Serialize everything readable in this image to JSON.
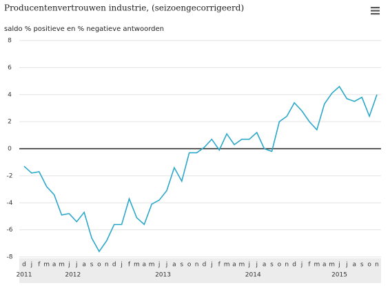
{
  "chart_data": {
    "type": "line",
    "title": "Producentenvertrouwen industrie, (seizoengecorrigeerd)",
    "subtitle": "saldo % positieve en % negatieve antwoorden",
    "categories": [
      "d",
      "j",
      "f",
      "m",
      "a",
      "m",
      "j",
      "j",
      "a",
      "s",
      "o",
      "n",
      "d",
      "j",
      "f",
      "m",
      "a",
      "m",
      "j",
      "j",
      "a",
      "s",
      "o",
      "n",
      "d",
      "j",
      "f",
      "m",
      "a",
      "m",
      "j",
      "j",
      "a",
      "s",
      "o",
      "n",
      "d",
      "j",
      "f",
      "m",
      "a",
      "m",
      "j",
      "j",
      "a",
      "s",
      "o",
      "n"
    ],
    "years": [
      "2011",
      "2012",
      "2013",
      "2014",
      "2015"
    ],
    "series": [
      {
        "color": "#2aa7c9",
        "values": [
          -1.3,
          -1.8,
          -1.7,
          -2.8,
          -3.4,
          -4.9,
          -4.8,
          -5.4,
          -4.7,
          -6.6,
          -7.6,
          -6.8,
          -5.6,
          -5.6,
          -3.7,
          -5.1,
          -5.6,
          -4.1,
          -3.8,
          -3.1,
          -1.4,
          -2.4,
          -0.3,
          -0.3,
          0.1,
          0.7,
          -0.1,
          1.1,
          0.3,
          0.7,
          0.7,
          1.2,
          0.0,
          -0.2,
          2.0,
          2.4,
          3.4,
          2.8,
          2.0,
          1.4,
          3.3,
          4.1,
          4.6,
          3.7,
          3.5,
          3.8,
          2.4,
          4.0
        ]
      }
    ],
    "ylim": [
      -8,
      8
    ],
    "yticks": [
      -8,
      -6,
      -4,
      -2,
      0,
      2,
      4,
      6,
      8
    ],
    "grid": true,
    "zero_line": true
  }
}
